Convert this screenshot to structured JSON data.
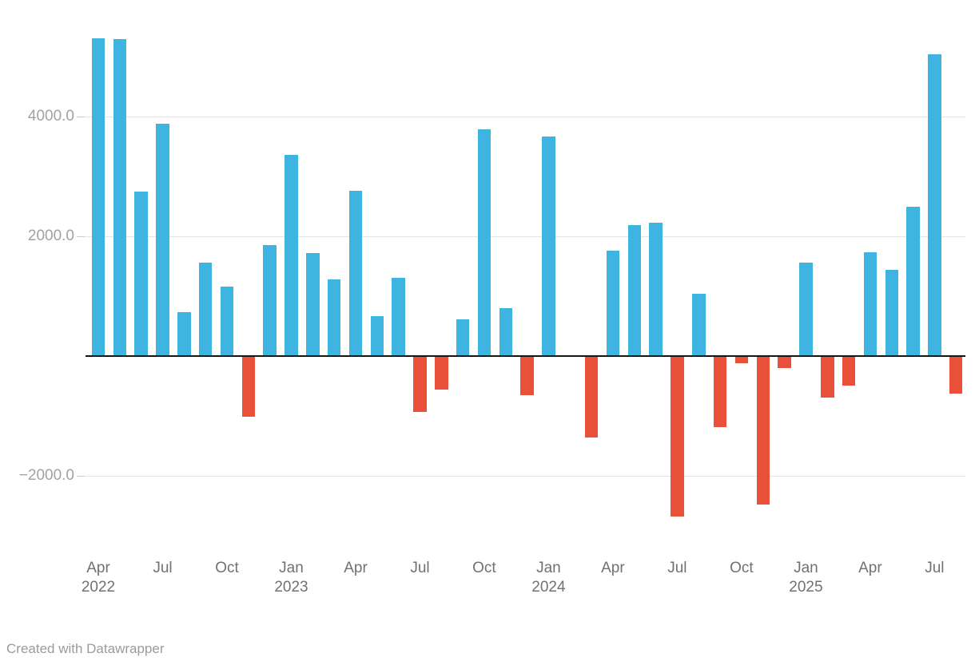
{
  "footer": {
    "credit": "Created with Datawrapper"
  },
  "colors": {
    "positive": "#3eb5e1",
    "negative": "#e8503a",
    "baseline": "#151515",
    "gridline": "#e4e4e4",
    "y_label": "#a2a2a2",
    "x_label": "#717171"
  },
  "chart_data": {
    "type": "bar",
    "title": "",
    "xlabel": "",
    "ylabel": "",
    "grid": true,
    "legend": "none",
    "ylim": [
      -2750,
      5450
    ],
    "baseline_value": 0,
    "x": [
      "Apr 2022",
      "May 2022",
      "Jun 2022",
      "Jul 2022",
      "Aug 2022",
      "Sep 2022",
      "Oct 2022",
      "Nov 2022",
      "Dec 2022",
      "Jan 2023",
      "Feb 2023",
      "Mar 2023",
      "Apr 2023",
      "May 2023",
      "Jun 2023",
      "Jul 2023",
      "Aug 2023",
      "Sep 2023",
      "Oct 2023",
      "Nov 2023",
      "Dec 2023",
      "Jan 2024",
      "Feb 2024",
      "Mar 2024",
      "Apr 2024",
      "May 2024",
      "Jun 2024",
      "Jul 2024",
      "Aug 2024",
      "Sep 2024",
      "Oct 2024",
      "Nov 2024",
      "Dec 2024",
      "Jan 2025",
      "Feb 2025",
      "Mar 2025",
      "Apr 2025",
      "May 2025",
      "Jun 2025",
      "Jul 2025",
      "Aug 2025"
    ],
    "values": [
      5300,
      5290,
      2740,
      3880,
      730,
      1550,
      1150,
      -1020,
      1850,
      3360,
      1710,
      1270,
      2750,
      660,
      1300,
      -940,
      -560,
      610,
      3780,
      790,
      -660,
      3660,
      0,
      -1370,
      1760,
      2180,
      2220,
      -2690,
      1030,
      -1190,
      -130,
      -2490,
      -200,
      1560,
      -700,
      -500,
      1730,
      1440,
      2490,
      5030,
      -630
    ],
    "color_rule": "positive values blue, negative values red",
    "y_ticks": [
      {
        "label": "4000.0",
        "value": 4000
      },
      {
        "label": "2000.0",
        "value": 2000
      },
      {
        "label": "−2000.0",
        "value": -2000
      }
    ],
    "x_ticks": [
      {
        "index": 0,
        "label": "Apr",
        "year": "2022"
      },
      {
        "index": 3,
        "label": "Jul",
        "year": ""
      },
      {
        "index": 6,
        "label": "Oct",
        "year": ""
      },
      {
        "index": 9,
        "label": "Jan",
        "year": "2023"
      },
      {
        "index": 12,
        "label": "Apr",
        "year": ""
      },
      {
        "index": 15,
        "label": "Jul",
        "year": ""
      },
      {
        "index": 18,
        "label": "Oct",
        "year": ""
      },
      {
        "index": 21,
        "label": "Jan",
        "year": "2024"
      },
      {
        "index": 24,
        "label": "Apr",
        "year": ""
      },
      {
        "index": 27,
        "label": "Jul",
        "year": ""
      },
      {
        "index": 30,
        "label": "Oct",
        "year": ""
      },
      {
        "index": 33,
        "label": "Jan",
        "year": "2025"
      },
      {
        "index": 36,
        "label": "Apr",
        "year": ""
      },
      {
        "index": 39,
        "label": "Jul",
        "year": ""
      }
    ]
  }
}
